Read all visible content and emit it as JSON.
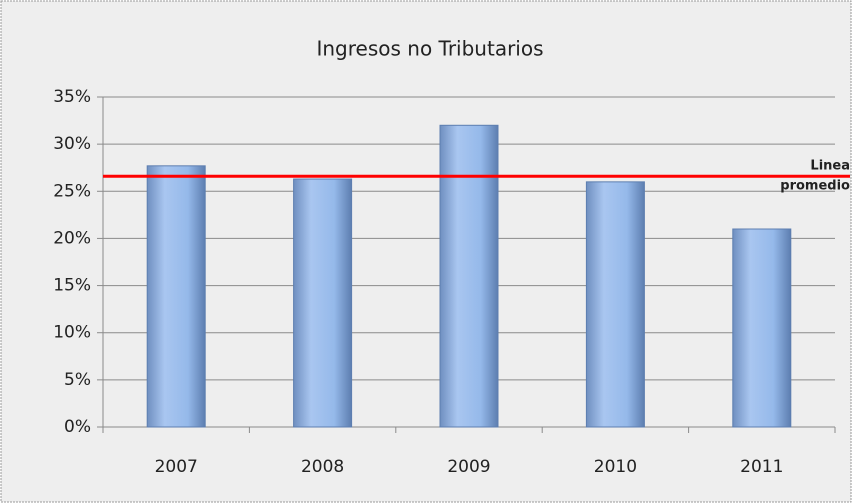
{
  "chart_data": {
    "type": "bar",
    "title": "Ingresos no Tributarios",
    "categories": [
      "2007",
      "2008",
      "2009",
      "2010",
      "2011"
    ],
    "values": [
      27.7,
      26.3,
      32,
      26,
      21
    ],
    "color": "#95b9ea",
    "ylim": [
      0,
      35
    ],
    "yticks": [
      {
        "value": 0,
        "label": "0%"
      },
      {
        "value": 5,
        "label": "5%"
      },
      {
        "value": 10,
        "label": "10%"
      },
      {
        "value": 15,
        "label": "15%"
      },
      {
        "value": 20,
        "label": "20%"
      },
      {
        "value": 25,
        "label": "25%"
      },
      {
        "value": 30,
        "label": "30%"
      },
      {
        "value": 35,
        "label": "35%"
      }
    ],
    "grid": true,
    "average_line": {
      "value": 26.6,
      "color": "#ff0000",
      "label_lines": [
        "Linea",
        "promedio"
      ]
    }
  }
}
